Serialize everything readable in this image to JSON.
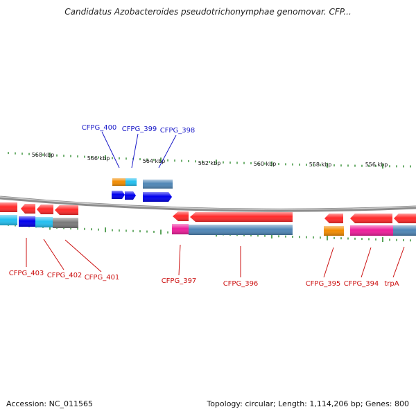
{
  "header": {
    "title": "Candidatus Azobacteroides pseudotrichonymphae genomovar. CFP..."
  },
  "footer": {
    "accession": "Accession: NC_011565",
    "summary": "Topology: circular; Length: 1,114,206 bp; Genes: 800"
  },
  "colors": {
    "backbone": "#8c8c8c",
    "tick": "#2e8b2e",
    "red": "#ff2a2a",
    "blue": "#0000ee",
    "cyan": "#22bff0",
    "orange": "#f28c00",
    "steel": "#4f86b6",
    "grey": "#7a7a7a",
    "magenta": "#ee1e9a",
    "label_blue": "#1a1ac8",
    "label_red": "#cc1111"
  },
  "scale_labels": [
    "568 kbp",
    "566 kbp",
    "564 kbp",
    "562 kbp",
    "560 kbp",
    "558 kbp",
    "556 kbp"
  ],
  "genes": [
    {
      "id": "CFPG_400",
      "strand": "forward",
      "color": "blue"
    },
    {
      "id": "CFPG_399",
      "strand": "forward",
      "color": "blue"
    },
    {
      "id": "CFPG_398",
      "strand": "forward",
      "color": "blue"
    },
    {
      "id": "CFPG_403",
      "strand": "reverse",
      "color": "red"
    },
    {
      "id": "CFPG_402",
      "strand": "reverse",
      "color": "red"
    },
    {
      "id": "CFPG_401",
      "strand": "reverse",
      "color": "red"
    },
    {
      "id": "CFPG_397",
      "strand": "reverse",
      "color": "red"
    },
    {
      "id": "CFPG_396",
      "strand": "reverse",
      "color": "red"
    },
    {
      "id": "CFPG_395",
      "strand": "reverse",
      "color": "red"
    },
    {
      "id": "CFPG_394",
      "strand": "reverse",
      "color": "red"
    },
    {
      "id": "trpA",
      "strand": "reverse",
      "color": "red"
    }
  ]
}
